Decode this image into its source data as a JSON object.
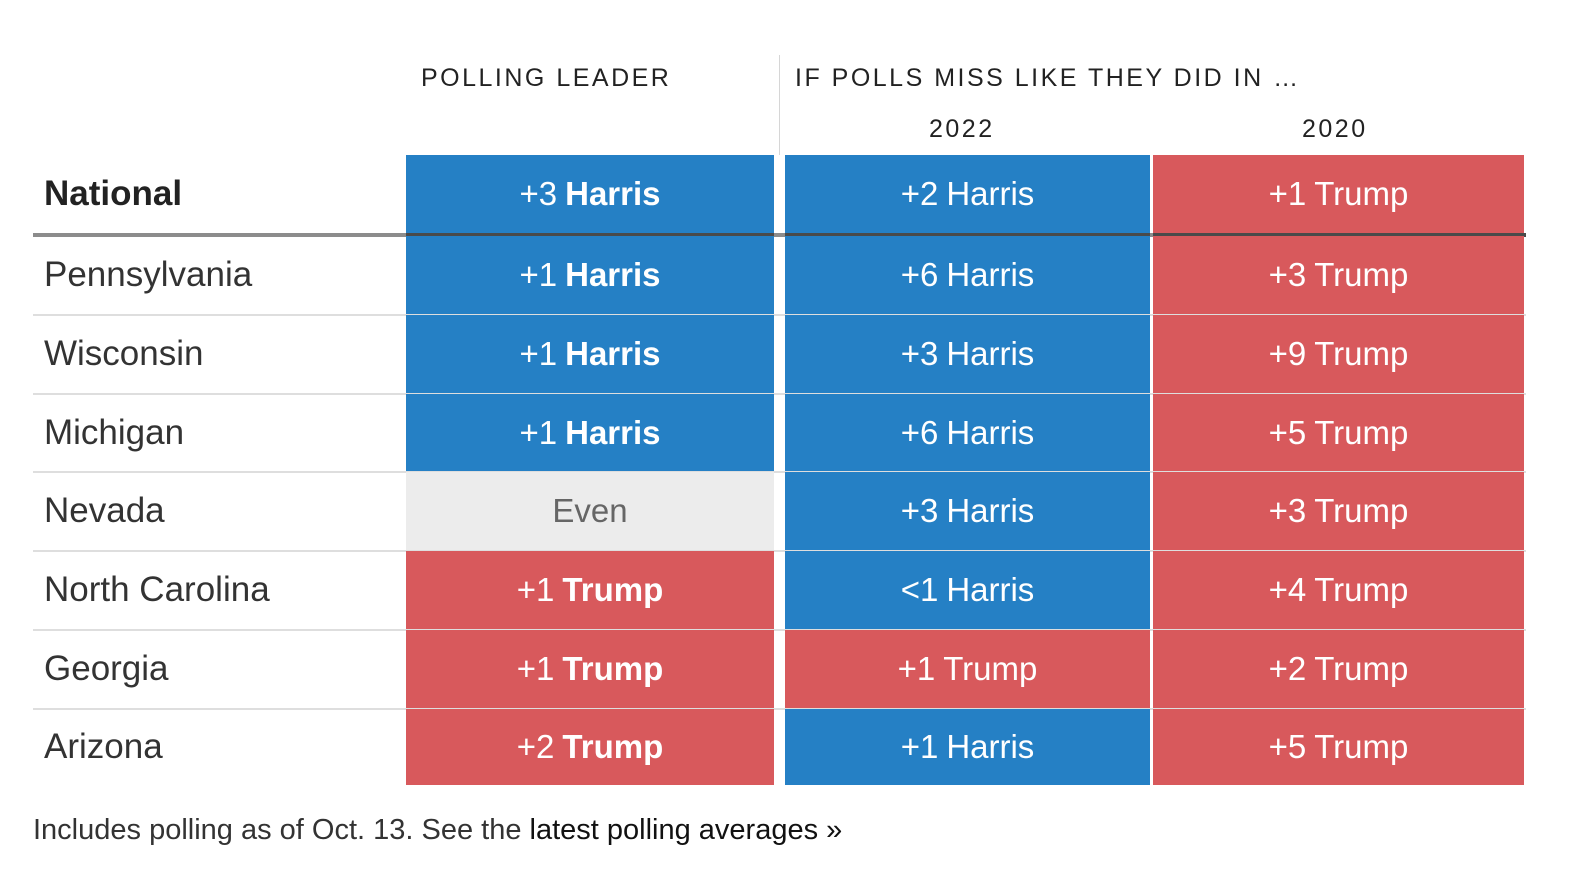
{
  "chart_data": {
    "type": "table",
    "headers": {
      "polling_leader": "POLLING LEADER",
      "if_polls_miss": "IF POLLS MISS LIKE THEY DID IN …",
      "col_2022": "2022",
      "col_2020": "2020"
    },
    "rows": [
      {
        "label": "National",
        "leader": {
          "num": "+3",
          "name": "Harris",
          "party": "harris"
        },
        "y2022": {
          "num": "+2",
          "name": "Harris",
          "party": "harris"
        },
        "y2020": {
          "num": "+1",
          "name": "Trump",
          "party": "trump"
        }
      },
      {
        "label": "Pennsylvania",
        "leader": {
          "num": "+1",
          "name": "Harris",
          "party": "harris"
        },
        "y2022": {
          "num": "+6",
          "name": "Harris",
          "party": "harris"
        },
        "y2020": {
          "num": "+3",
          "name": "Trump",
          "party": "trump"
        }
      },
      {
        "label": "Wisconsin",
        "leader": {
          "num": "+1",
          "name": "Harris",
          "party": "harris"
        },
        "y2022": {
          "num": "+3",
          "name": "Harris",
          "party": "harris"
        },
        "y2020": {
          "num": "+9",
          "name": "Trump",
          "party": "trump"
        }
      },
      {
        "label": "Michigan",
        "leader": {
          "num": "+1",
          "name": "Harris",
          "party": "harris"
        },
        "y2022": {
          "num": "+6",
          "name": "Harris",
          "party": "harris"
        },
        "y2020": {
          "num": "+5",
          "name": "Trump",
          "party": "trump"
        }
      },
      {
        "label": "Nevada",
        "leader": {
          "num": "",
          "name": "Even",
          "party": "even"
        },
        "y2022": {
          "num": "+3",
          "name": "Harris",
          "party": "harris"
        },
        "y2020": {
          "num": "+3",
          "name": "Trump",
          "party": "trump"
        }
      },
      {
        "label": "North Carolina",
        "leader": {
          "num": "+1",
          "name": "Trump",
          "party": "trump"
        },
        "y2022": {
          "num": "<1",
          "name": "Harris",
          "party": "harris"
        },
        "y2020": {
          "num": "+4",
          "name": "Trump",
          "party": "trump"
        }
      },
      {
        "label": "Georgia",
        "leader": {
          "num": "+1",
          "name": "Trump",
          "party": "trump"
        },
        "y2022": {
          "num": "+1",
          "name": "Trump",
          "party": "trump"
        },
        "y2020": {
          "num": "+2",
          "name": "Trump",
          "party": "trump"
        }
      },
      {
        "label": "Arizona",
        "leader": {
          "num": "+2",
          "name": "Trump",
          "party": "trump"
        },
        "y2022": {
          "num": "+1",
          "name": "Harris",
          "party": "harris"
        },
        "y2020": {
          "num": "+5",
          "name": "Trump",
          "party": "trump"
        }
      }
    ],
    "colors": {
      "harris": "#2580c5",
      "trump": "#d8595c",
      "even": "#ececec"
    }
  },
  "note": {
    "text": "Includes polling as of Oct. 13. See the ",
    "link": "latest polling averages »"
  }
}
